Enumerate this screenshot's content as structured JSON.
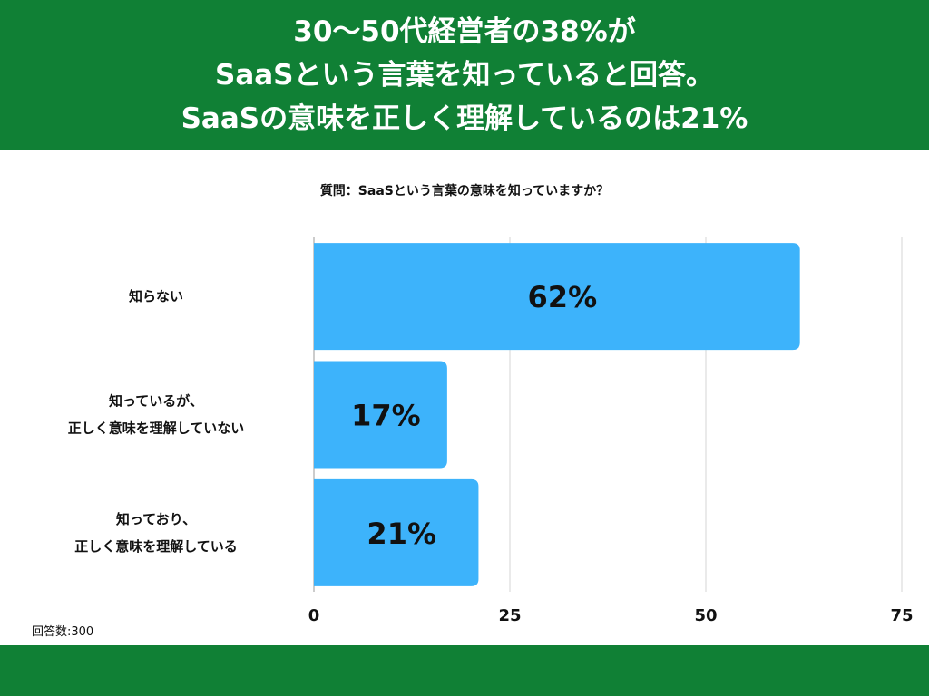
{
  "header": {
    "lines": [
      "30〜50代経営者の38%が",
      "SaaSという言葉を知っていると回答。",
      "SaaSの意味を正しく理解しているのは21%"
    ]
  },
  "colors": {
    "header_bg": "#108035",
    "bar": "#3db3fb",
    "grid": "#d6d6d6"
  },
  "chart_data": {
    "type": "bar",
    "orientation": "horizontal",
    "title": "質問：SaaSという言葉の意味を知っていますか？",
    "categories": [
      [
        "知らない"
      ],
      [
        "知っているが、",
        "正しく意味を理解していない"
      ],
      [
        "知っており、",
        "正しく意味を理解している"
      ]
    ],
    "values": [
      62,
      17,
      21
    ],
    "data_labels": [
      "62%",
      "17%",
      "21%"
    ],
    "xlim": [
      0,
      75
    ],
    "xticks": [
      0,
      25,
      50,
      75
    ],
    "grid": true,
    "legend": "none"
  },
  "footnote": "回答数:300"
}
